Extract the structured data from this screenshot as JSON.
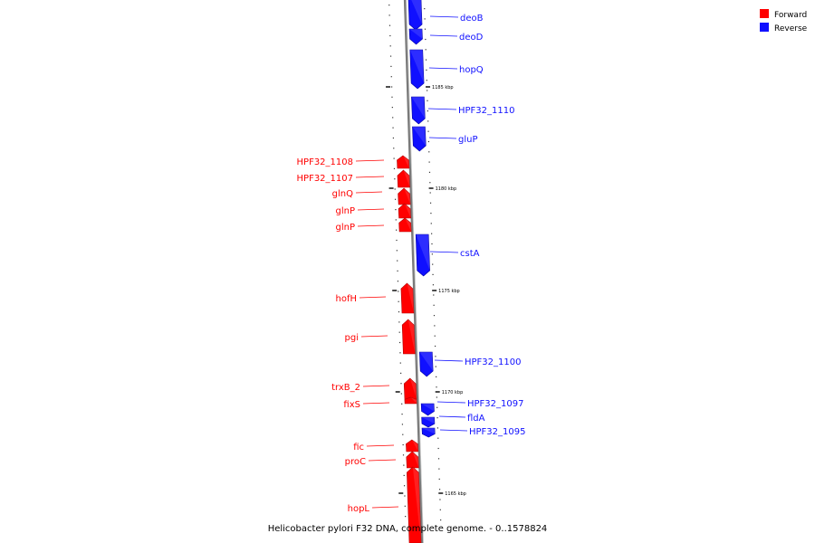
{
  "colors": {
    "forward": "#ff0000",
    "reverse": "#1010ff",
    "axis": "#7a7a7a",
    "tick": "#000000"
  },
  "legend": [
    {
      "label": "Forward",
      "strand": "forward"
    },
    {
      "label": "Reverse",
      "strand": "reverse"
    }
  ],
  "caption": "Helicobacter pylori F32 DNA, complete genome. - 0..1578824",
  "major_ticks": [
    {
      "label": "1185 kbp"
    },
    {
      "label": "1180 kbp"
    },
    {
      "label": "1175 kbp"
    },
    {
      "label": "1170 kbp"
    },
    {
      "label": "1165 kbp"
    }
  ],
  "genes": [
    {
      "name": "deoB",
      "strand": "reverse"
    },
    {
      "name": "deoD",
      "strand": "reverse"
    },
    {
      "name": "hopQ",
      "strand": "reverse"
    },
    {
      "name": "HPF32_1110",
      "strand": "reverse"
    },
    {
      "name": "gluP",
      "strand": "reverse"
    },
    {
      "name": "HPF32_1108",
      "strand": "forward"
    },
    {
      "name": "HPF32_1107",
      "strand": "forward"
    },
    {
      "name": "glnQ",
      "strand": "forward"
    },
    {
      "name": "glnP",
      "strand": "forward"
    },
    {
      "name": "glnP",
      "strand": "forward"
    },
    {
      "name": "cstA",
      "strand": "reverse"
    },
    {
      "name": "hofH",
      "strand": "forward"
    },
    {
      "name": "pgi",
      "strand": "forward"
    },
    {
      "name": "HPF32_1100",
      "strand": "reverse"
    },
    {
      "name": "trxB_2",
      "strand": "forward"
    },
    {
      "name": "fixS",
      "strand": "forward"
    },
    {
      "name": "HPF32_1097",
      "strand": "reverse"
    },
    {
      "name": "fldA",
      "strand": "reverse"
    },
    {
      "name": "HPF32_1095",
      "strand": "reverse"
    },
    {
      "name": "fic",
      "strand": "forward"
    },
    {
      "name": "proC",
      "strand": "forward"
    },
    {
      "name": "hopL",
      "strand": "forward"
    }
  ]
}
